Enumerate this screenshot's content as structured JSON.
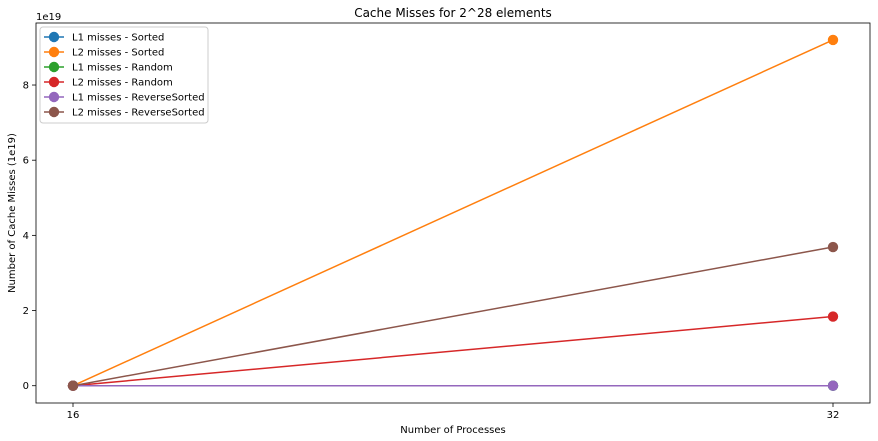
{
  "chart_data": {
    "type": "line",
    "title": "Cache Misses for 2^28 elements",
    "xlabel": "Number of Processes",
    "ylabel": "Number of Cache Misses (1e19)",
    "y_offset_label": "1e19",
    "x": [
      16,
      32
    ],
    "x_tick_labels": [
      "16",
      "32"
    ],
    "y_ticks": [
      0,
      2,
      4,
      6,
      8
    ],
    "y_tick_labels": [
      "0",
      "2",
      "4",
      "6",
      "8"
    ],
    "ylim": [
      -0.46,
      9.65
    ],
    "grid": false,
    "legend_position": "upper-left",
    "series": [
      {
        "name": "L1 misses - Sorted",
        "color": "#1f77b4",
        "values": [
          0,
          0
        ]
      },
      {
        "name": "L2 misses - Sorted",
        "color": "#ff7f0e",
        "values": [
          0,
          9.2
        ]
      },
      {
        "name": "L1 misses - Random",
        "color": "#2ca02c",
        "values": [
          0,
          0
        ]
      },
      {
        "name": "L2 misses - Random",
        "color": "#d62728",
        "values": [
          0,
          1.84
        ]
      },
      {
        "name": "L1 misses - ReverseSorted",
        "color": "#9467bd",
        "values": [
          0,
          0
        ]
      },
      {
        "name": "L2 misses - ReverseSorted",
        "color": "#8c564b",
        "values": [
          0,
          3.69
        ]
      }
    ]
  }
}
